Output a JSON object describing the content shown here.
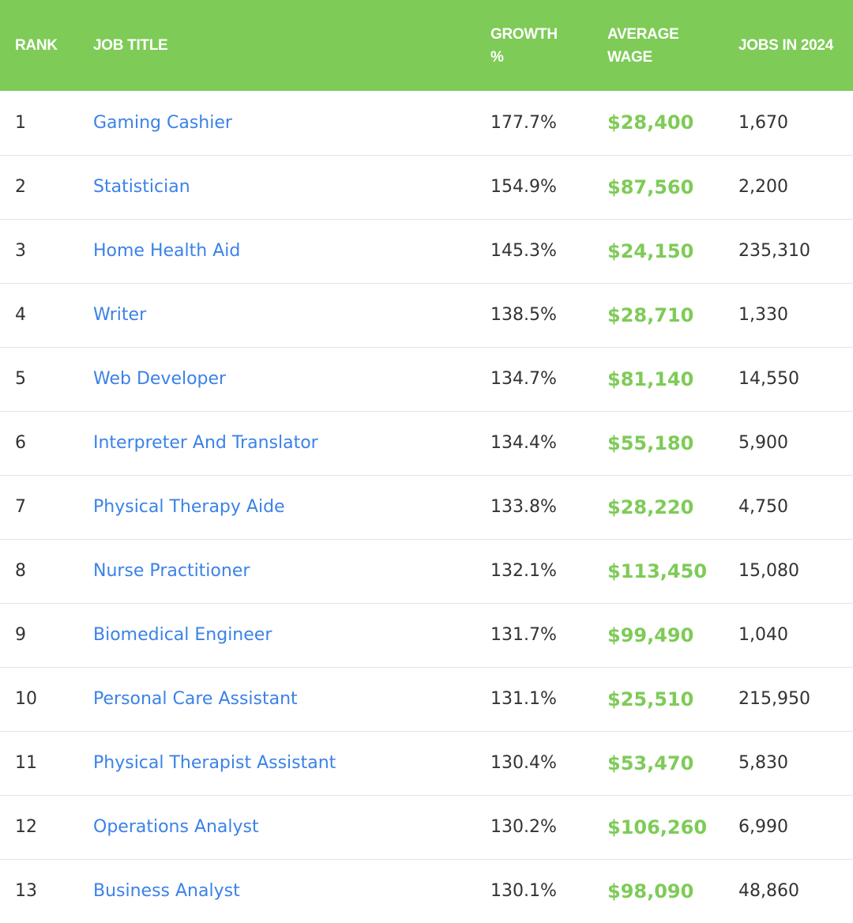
{
  "colors": {
    "header_bg": "#7ecb57",
    "header_text": "#ffffff",
    "link": "#3b82e8",
    "wage": "#7ecb57",
    "row_divider": "#e6e6e6"
  },
  "table": {
    "headers": {
      "rank": "RANK",
      "job_title": "JOB TITLE",
      "growth": "GROWTH %",
      "average_wage": "AVERAGE WAGE",
      "jobs": "JOBS IN 2024"
    },
    "rows": [
      {
        "rank": "1",
        "title": "Gaming Cashier",
        "growth": "177.7%",
        "wage": "$28,400",
        "jobs": "1,670"
      },
      {
        "rank": "2",
        "title": "Statistician",
        "growth": "154.9%",
        "wage": "$87,560",
        "jobs": "2,200"
      },
      {
        "rank": "3",
        "title": "Home Health Aid",
        "growth": "145.3%",
        "wage": "$24,150",
        "jobs": "235,310"
      },
      {
        "rank": "4",
        "title": "Writer",
        "growth": "138.5%",
        "wage": "$28,710",
        "jobs": "1,330"
      },
      {
        "rank": "5",
        "title": "Web Developer",
        "growth": "134.7%",
        "wage": "$81,140",
        "jobs": "14,550"
      },
      {
        "rank": "6",
        "title": "Interpreter And Translator",
        "growth": "134.4%",
        "wage": "$55,180",
        "jobs": "5,900"
      },
      {
        "rank": "7",
        "title": "Physical Therapy Aide",
        "growth": "133.8%",
        "wage": "$28,220",
        "jobs": "4,750"
      },
      {
        "rank": "8",
        "title": "Nurse Practitioner",
        "growth": "132.1%",
        "wage": "$113,450",
        "jobs": "15,080"
      },
      {
        "rank": "9",
        "title": "Biomedical Engineer",
        "growth": "131.7%",
        "wage": "$99,490",
        "jobs": "1,040"
      },
      {
        "rank": "10",
        "title": "Personal Care Assistant",
        "growth": "131.1%",
        "wage": "$25,510",
        "jobs": "215,950"
      },
      {
        "rank": "11",
        "title": "Physical Therapist Assistant",
        "growth": "130.4%",
        "wage": "$53,470",
        "jobs": "5,830"
      },
      {
        "rank": "12",
        "title": "Operations Analyst",
        "growth": "130.2%",
        "wage": "$106,260",
        "jobs": "6,990"
      },
      {
        "rank": "13",
        "title": "Business Analyst",
        "growth": "130.1%",
        "wage": "$98,090",
        "jobs": "48,860"
      }
    ]
  }
}
